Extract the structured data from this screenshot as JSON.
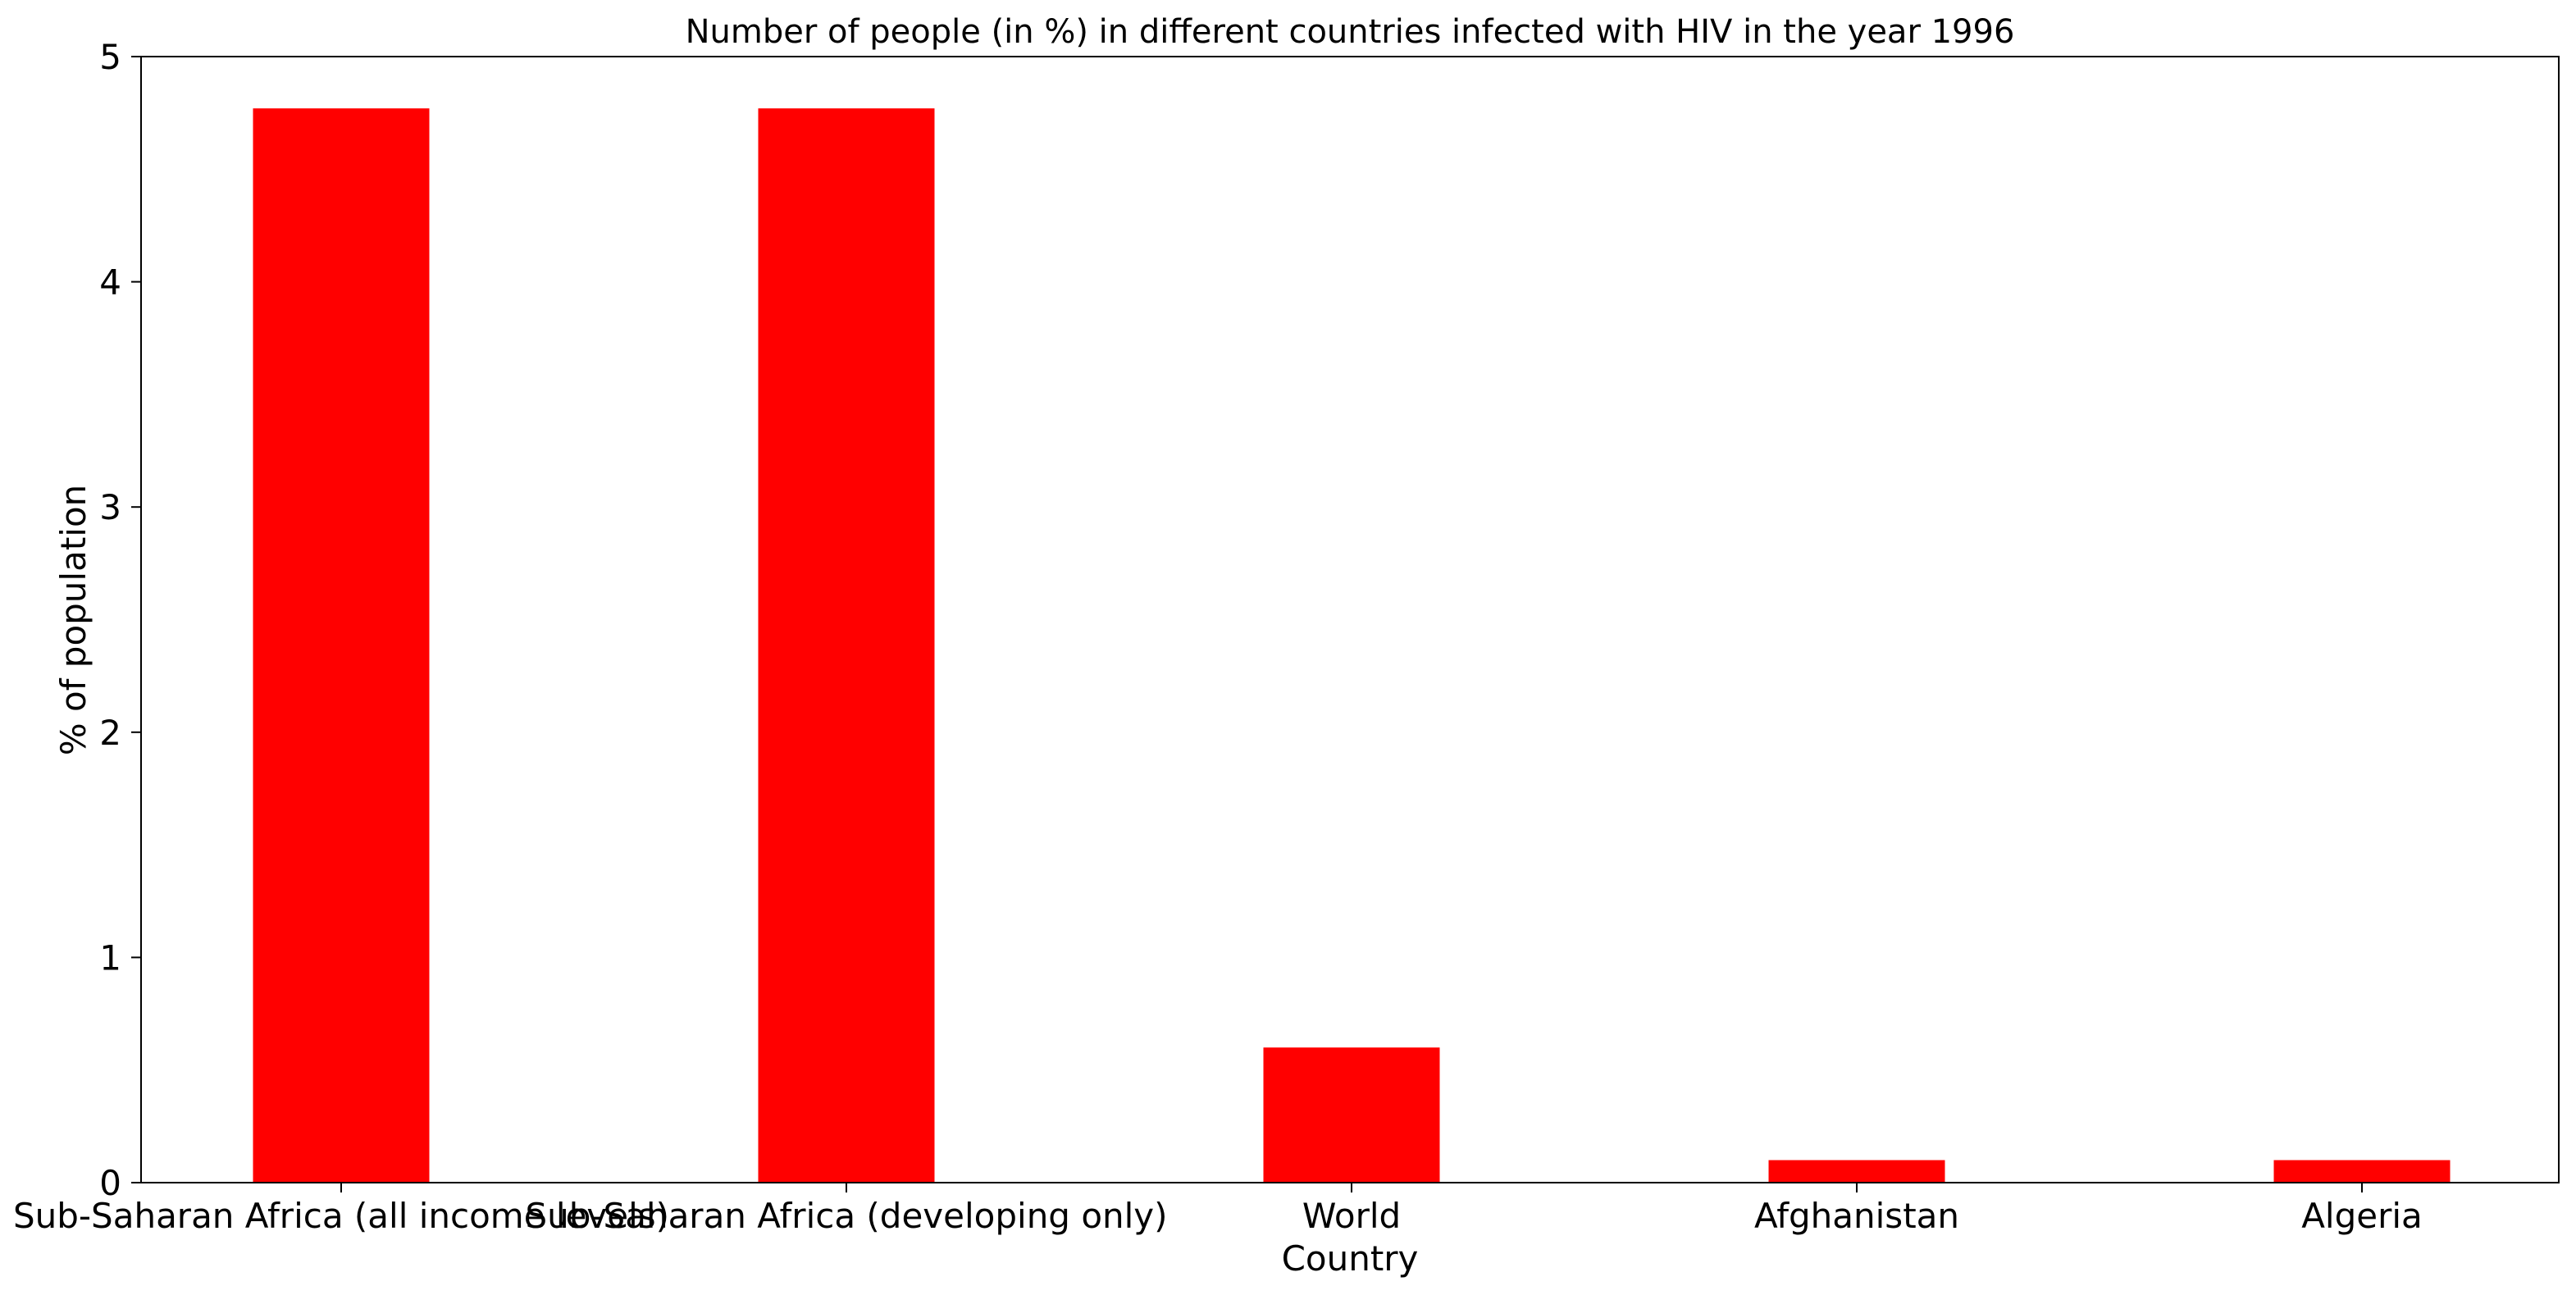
{
  "chart_data": {
    "type": "bar",
    "title": "Number of people (in %) in different countries infected with HIV in the year 1996",
    "xlabel": "Country",
    "ylabel": "% of population",
    "categories": [
      "Sub-Saharan Africa (all income levels)",
      "Sub-Saharan Africa (developing only)",
      "World",
      "Afghanistan",
      "Algeria"
    ],
    "values": [
      4.77,
      4.77,
      0.6,
      0.1,
      0.1
    ],
    "ylim": [
      0,
      5
    ],
    "yticks": [
      "0",
      "1",
      "2",
      "3",
      "4",
      "5"
    ],
    "grid": false,
    "legend": "none",
    "bar_color": "#ff0000"
  }
}
